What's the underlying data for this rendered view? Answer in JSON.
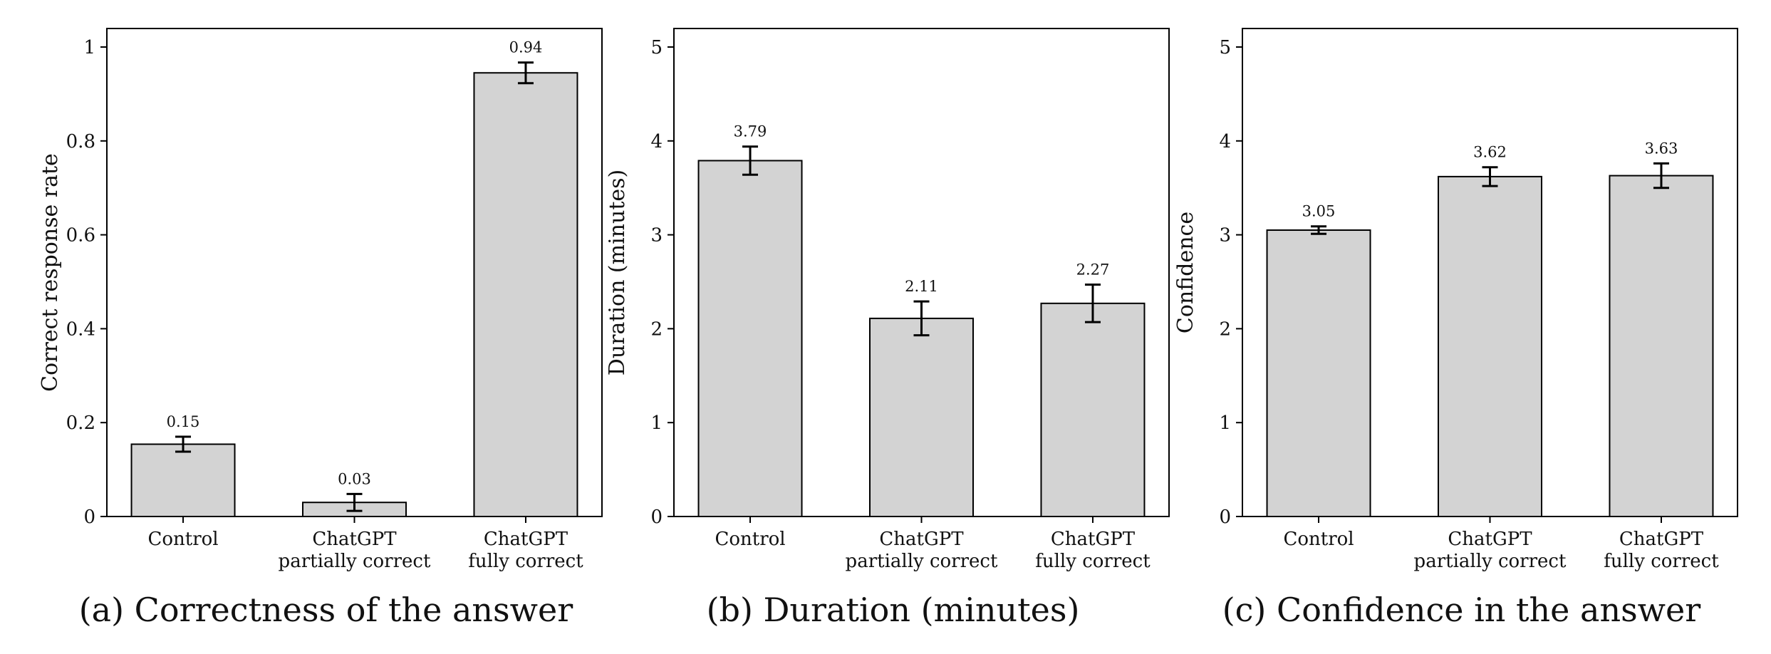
{
  "chart_data": [
    {
      "type": "bar",
      "caption": "(a) Correctness of the answer",
      "ylabel": "Correct response rate",
      "categories": [
        [
          "Control"
        ],
        [
          "ChatGPT",
          "partially correct"
        ],
        [
          "ChatGPT",
          "fully correct"
        ]
      ],
      "values": [
        0.154,
        0.03,
        0.945
      ],
      "value_labels": [
        "0.15",
        "0.03",
        "0.94"
      ],
      "errors": [
        0.016,
        0.018,
        0.022
      ],
      "ylim": [
        0,
        1.0
      ],
      "yticks": [
        0,
        0.2,
        0.4,
        0.6,
        0.8,
        1
      ],
      "ytick_labels": [
        "0",
        "0.2",
        "0.4",
        "0.6",
        "0.8",
        "1"
      ],
      "bar_color": "#d3d3d3",
      "grid": false
    },
    {
      "type": "bar",
      "caption": "(b) Duration (minutes)",
      "ylabel": "Duration (minutes)",
      "categories": [
        [
          "Control"
        ],
        [
          "ChatGPT",
          "partially correct"
        ],
        [
          "ChatGPT",
          "fully correct"
        ]
      ],
      "values": [
        3.79,
        2.11,
        2.27
      ],
      "value_labels": [
        "3.79",
        "2.11",
        "2.27"
      ],
      "errors": [
        0.15,
        0.18,
        0.2
      ],
      "ylim": [
        0,
        5
      ],
      "yticks": [
        0,
        1,
        2,
        3,
        4,
        5
      ],
      "ytick_labels": [
        "0",
        "1",
        "2",
        "3",
        "4",
        "5"
      ],
      "bar_color": "#d3d3d3",
      "grid": false
    },
    {
      "type": "bar",
      "caption": "(c) Confidence in the answer",
      "ylabel": "Confidence",
      "categories": [
        [
          "Control"
        ],
        [
          "ChatGPT",
          "partially correct"
        ],
        [
          "ChatGPT",
          "fully correct"
        ]
      ],
      "values": [
        3.05,
        3.62,
        3.63
      ],
      "value_labels": [
        "3.05",
        "3.62",
        "3.63"
      ],
      "errors": [
        0.04,
        0.1,
        0.13
      ],
      "ylim": [
        0,
        5
      ],
      "yticks": [
        0,
        1,
        2,
        3,
        4,
        5
      ],
      "ytick_labels": [
        "0",
        "1",
        "2",
        "3",
        "4",
        "5"
      ],
      "bar_color": "#d3d3d3",
      "grid": false
    }
  ]
}
